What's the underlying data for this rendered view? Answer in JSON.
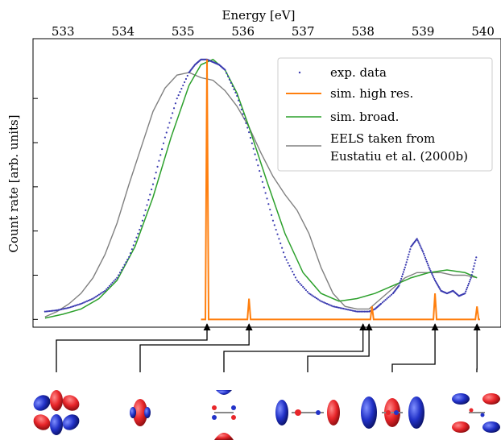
{
  "chart_data": {
    "type": "line",
    "xlabel": "Energy [eV]",
    "ylabel": "Count rate [arb. units]",
    "xlim": [
      532.5,
      540.3
    ],
    "ylim": [
      -0.03,
      1.08
    ],
    "x_ticks": [
      533,
      534,
      535,
      536,
      537,
      538,
      539,
      540
    ],
    "x_tick_labels": [
      "533",
      "534",
      "535",
      "536",
      "537",
      "538",
      "539",
      "540"
    ],
    "y_ticks": [
      0.0,
      0.17,
      0.34,
      0.51,
      0.68,
      0.85
    ],
    "legend_position": "top-right",
    "colors": {
      "exp": "#3b3bb0",
      "high_res": "#ff7f0e",
      "broad": "#2ca02c",
      "eels": "#808080",
      "orbital_red": "#e8262a",
      "orbital_blue": "#2232c8"
    },
    "series": [
      {
        "name": "exp. data",
        "style": "dots",
        "x": [
          532.7,
          532.9,
          533.1,
          533.3,
          533.5,
          533.7,
          533.9,
          534.1,
          534.3,
          534.5,
          534.7,
          534.9,
          535.1,
          535.2,
          535.3,
          535.4,
          535.5,
          535.6,
          535.7,
          535.9,
          536.1,
          536.3,
          536.5,
          536.7,
          536.9,
          537.1,
          537.3,
          537.5,
          537.7,
          537.9,
          538.1,
          538.2,
          538.3,
          538.5,
          538.6,
          538.7,
          538.8,
          538.9,
          539.0,
          539.1,
          539.2,
          539.3,
          539.4,
          539.5,
          539.6,
          539.7,
          539.8,
          539.9
        ],
        "y": [
          0.03,
          0.035,
          0.045,
          0.06,
          0.08,
          0.11,
          0.16,
          0.24,
          0.36,
          0.52,
          0.7,
          0.85,
          0.95,
          0.98,
          1.0,
          1.0,
          0.99,
          0.98,
          0.96,
          0.86,
          0.72,
          0.55,
          0.38,
          0.24,
          0.15,
          0.1,
          0.07,
          0.05,
          0.04,
          0.03,
          0.03,
          0.04,
          0.06,
          0.1,
          0.13,
          0.2,
          0.28,
          0.31,
          0.26,
          0.2,
          0.15,
          0.11,
          0.1,
          0.11,
          0.09,
          0.1,
          0.16,
          0.25
        ]
      },
      {
        "name": "sim. high res.",
        "style": "peaks",
        "baseline": 0.0,
        "peaks": [
          {
            "x": 535.4,
            "height": 1.0
          },
          {
            "x": 536.1,
            "height": 0.08
          },
          {
            "x": 538.15,
            "height": 0.05
          },
          {
            "x": 539.2,
            "height": 0.1
          },
          {
            "x": 539.9,
            "height": 0.05
          }
        ],
        "x_start": 535.3,
        "x_end": 539.95
      },
      {
        "name": "sim. broad.",
        "style": "line",
        "x": [
          532.7,
          533.0,
          533.3,
          533.6,
          533.9,
          534.2,
          534.5,
          534.8,
          535.1,
          535.3,
          535.5,
          535.7,
          535.9,
          536.1,
          536.4,
          536.7,
          537.0,
          537.3,
          537.6,
          537.9,
          538.2,
          538.5,
          538.8,
          539.1,
          539.4,
          539.7,
          539.9
        ],
        "y": [
          0.005,
          0.02,
          0.04,
          0.08,
          0.15,
          0.28,
          0.47,
          0.7,
          0.9,
          0.98,
          1.0,
          0.96,
          0.87,
          0.74,
          0.53,
          0.33,
          0.18,
          0.1,
          0.07,
          0.08,
          0.1,
          0.13,
          0.16,
          0.18,
          0.19,
          0.18,
          0.16
        ]
      },
      {
        "name": "EELS taken from",
        "name_line2": "Eustatiu et al. (2000b)",
        "style": "line",
        "x": [
          532.7,
          532.9,
          533.1,
          533.3,
          533.5,
          533.7,
          533.9,
          534.1,
          534.3,
          534.5,
          534.7,
          534.9,
          535.1,
          535.3,
          535.5,
          535.7,
          535.9,
          536.1,
          536.3,
          536.5,
          536.7,
          536.9,
          537.1,
          537.3,
          537.5,
          537.7,
          537.9,
          538.1,
          538.3,
          538.5,
          538.7,
          538.9,
          539.1,
          539.3,
          539.5,
          539.7,
          539.9
        ],
        "y": [
          0.01,
          0.03,
          0.06,
          0.1,
          0.16,
          0.25,
          0.37,
          0.52,
          0.66,
          0.8,
          0.89,
          0.94,
          0.95,
          0.93,
          0.92,
          0.88,
          0.82,
          0.74,
          0.64,
          0.55,
          0.48,
          0.42,
          0.33,
          0.2,
          0.1,
          0.05,
          0.04,
          0.04,
          0.08,
          0.12,
          0.16,
          0.18,
          0.18,
          0.18,
          0.17,
          0.17,
          0.16
        ]
      }
    ]
  },
  "arrows": [
    {
      "peak_x": 535.4,
      "orbital": 0
    },
    {
      "peak_x": 536.1,
      "orbital": 1
    },
    {
      "peak_x": 538.0,
      "orbital": 2
    },
    {
      "peak_x": 538.1,
      "orbital": 3
    },
    {
      "peak_x": 539.2,
      "orbital": 4
    },
    {
      "peak_x": 539.9,
      "orbital": 5
    }
  ]
}
